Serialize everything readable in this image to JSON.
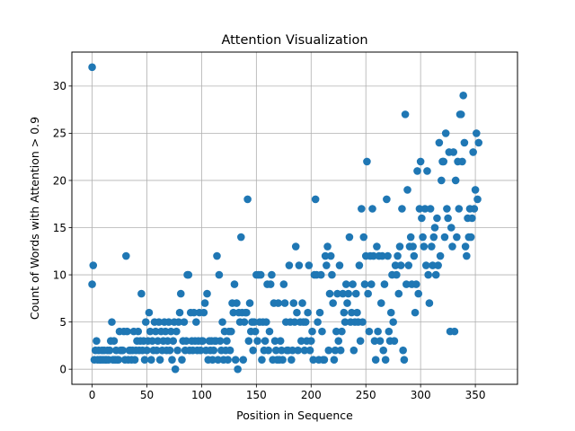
{
  "chart_data": {
    "type": "scatter",
    "title": "Attention Visualization",
    "xlabel": "Position in Sequence",
    "ylabel": "Count of Words with Attention > 0.9",
    "xlim": [
      -18.5,
      388.5
    ],
    "ylim": [
      -1.6,
      33.6
    ],
    "xticks": [
      0,
      50,
      100,
      150,
      200,
      250,
      300,
      350
    ],
    "yticks": [
      0,
      5,
      10,
      15,
      20,
      25,
      30
    ],
    "grid": true,
    "marker_color": "#1f77b4",
    "points": [
      [
        0,
        32
      ],
      [
        0,
        9
      ],
      [
        1,
        11
      ],
      [
        2,
        1
      ],
      [
        3,
        2
      ],
      [
        4,
        3
      ],
      [
        5,
        1
      ],
      [
        6,
        2
      ],
      [
        7,
        1
      ],
      [
        8,
        1
      ],
      [
        9,
        2
      ],
      [
        10,
        1
      ],
      [
        11,
        2
      ],
      [
        12,
        1
      ],
      [
        13,
        1
      ],
      [
        14,
        2
      ],
      [
        15,
        1
      ],
      [
        16,
        2
      ],
      [
        17,
        3
      ],
      [
        18,
        5
      ],
      [
        19,
        1
      ],
      [
        20,
        3
      ],
      [
        21,
        1
      ],
      [
        22,
        2
      ],
      [
        23,
        1
      ],
      [
        24,
        1
      ],
      [
        25,
        4
      ],
      [
        26,
        2
      ],
      [
        27,
        2
      ],
      [
        28,
        2
      ],
      [
        29,
        4
      ],
      [
        30,
        1
      ],
      [
        31,
        12
      ],
      [
        32,
        4
      ],
      [
        33,
        1
      ],
      [
        34,
        2
      ],
      [
        35,
        2
      ],
      [
        36,
        1
      ],
      [
        37,
        2
      ],
      [
        38,
        4
      ],
      [
        39,
        1
      ],
      [
        40,
        2
      ],
      [
        41,
        3
      ],
      [
        42,
        4
      ],
      [
        43,
        2
      ],
      [
        44,
        3
      ],
      [
        45,
        8
      ],
      [
        46,
        2
      ],
      [
        47,
        3
      ],
      [
        48,
        1
      ],
      [
        49,
        5
      ],
      [
        50,
        2
      ],
      [
        51,
        3
      ],
      [
        52,
        6
      ],
      [
        53,
        4
      ],
      [
        54,
        1
      ],
      [
        55,
        3
      ],
      [
        56,
        2
      ],
      [
        57,
        5
      ],
      [
        58,
        4
      ],
      [
        59,
        2
      ],
      [
        60,
        3
      ],
      [
        61,
        5
      ],
      [
        62,
        1
      ],
      [
        63,
        4
      ],
      [
        64,
        2
      ],
      [
        65,
        3
      ],
      [
        66,
        5
      ],
      [
        67,
        4
      ],
      [
        68,
        2
      ],
      [
        69,
        3
      ],
      [
        70,
        5
      ],
      [
        71,
        2
      ],
      [
        72,
        4
      ],
      [
        73,
        1
      ],
      [
        74,
        3
      ],
      [
        75,
        5
      ],
      [
        76,
        0
      ],
      [
        77,
        4
      ],
      [
        78,
        2
      ],
      [
        79,
        5
      ],
      [
        80,
        6
      ],
      [
        81,
        8
      ],
      [
        82,
        1
      ],
      [
        83,
        3
      ],
      [
        84,
        5
      ],
      [
        85,
        2
      ],
      [
        86,
        3
      ],
      [
        87,
        10
      ],
      [
        88,
        10
      ],
      [
        89,
        2
      ],
      [
        90,
        6
      ],
      [
        91,
        3
      ],
      [
        92,
        2
      ],
      [
        93,
        6
      ],
      [
        94,
        3
      ],
      [
        95,
        5
      ],
      [
        96,
        2
      ],
      [
        97,
        3
      ],
      [
        98,
        6
      ],
      [
        99,
        2
      ],
      [
        100,
        3
      ],
      [
        101,
        3
      ],
      [
        102,
        6
      ],
      [
        103,
        7
      ],
      [
        104,
        2
      ],
      [
        105,
        8
      ],
      [
        106,
        1
      ],
      [
        107,
        3
      ],
      [
        108,
        2
      ],
      [
        109,
        3
      ],
      [
        110,
        1
      ],
      [
        111,
        2
      ],
      [
        112,
        3
      ],
      [
        113,
        3
      ],
      [
        114,
        12
      ],
      [
        115,
        1
      ],
      [
        116,
        10
      ],
      [
        117,
        3
      ],
      [
        118,
        2
      ],
      [
        119,
        5
      ],
      [
        120,
        1
      ],
      [
        121,
        4
      ],
      [
        122,
        2
      ],
      [
        123,
        3
      ],
      [
        124,
        1
      ],
      [
        125,
        4
      ],
      [
        126,
        2
      ],
      [
        127,
        4
      ],
      [
        128,
        7
      ],
      [
        129,
        6
      ],
      [
        130,
        9
      ],
      [
        131,
        1
      ],
      [
        132,
        7
      ],
      [
        133,
        0
      ],
      [
        134,
        6
      ],
      [
        135,
        5
      ],
      [
        136,
        14
      ],
      [
        137,
        6
      ],
      [
        138,
        1
      ],
      [
        139,
        5
      ],
      [
        140,
        6
      ],
      [
        141,
        6
      ],
      [
        142,
        18
      ],
      [
        143,
        3
      ],
      [
        144,
        7
      ],
      [
        145,
        4
      ],
      [
        146,
        5
      ],
      [
        147,
        2
      ],
      [
        148,
        5
      ],
      [
        149,
        4
      ],
      [
        150,
        10
      ],
      [
        151,
        3
      ],
      [
        152,
        10
      ],
      [
        153,
        5
      ],
      [
        154,
        10
      ],
      [
        155,
        1
      ],
      [
        156,
        5
      ],
      [
        157,
        2
      ],
      [
        158,
        3
      ],
      [
        159,
        5
      ],
      [
        160,
        9
      ],
      [
        161,
        2
      ],
      [
        162,
        4
      ],
      [
        163,
        9
      ],
      [
        164,
        10
      ],
      [
        165,
        1
      ],
      [
        166,
        7
      ],
      [
        167,
        3
      ],
      [
        168,
        2
      ],
      [
        169,
        1
      ],
      [
        170,
        7
      ],
      [
        171,
        1
      ],
      [
        172,
        3
      ],
      [
        173,
        2
      ],
      [
        174,
        1
      ],
      [
        175,
        9
      ],
      [
        176,
        7
      ],
      [
        177,
        5
      ],
      [
        178,
        2
      ],
      [
        179,
        2
      ],
      [
        180,
        11
      ],
      [
        181,
        5
      ],
      [
        182,
        1
      ],
      [
        183,
        2
      ],
      [
        184,
        7
      ],
      [
        185,
        5
      ],
      [
        186,
        13
      ],
      [
        187,
        6
      ],
      [
        188,
        2
      ],
      [
        189,
        11
      ],
      [
        190,
        5
      ],
      [
        191,
        3
      ],
      [
        192,
        7
      ],
      [
        193,
        5
      ],
      [
        194,
        2
      ],
      [
        195,
        5
      ],
      [
        196,
        3
      ],
      [
        197,
        6
      ],
      [
        198,
        11
      ],
      [
        199,
        2
      ],
      [
        200,
        3
      ],
      [
        201,
        4
      ],
      [
        202,
        1
      ],
      [
        203,
        10
      ],
      [
        204,
        18
      ],
      [
        205,
        10
      ],
      [
        206,
        5
      ],
      [
        207,
        1
      ],
      [
        208,
        6
      ],
      [
        209,
        10
      ],
      [
        210,
        4
      ],
      [
        211,
        1
      ],
      [
        212,
        1
      ],
      [
        213,
        12
      ],
      [
        214,
        11
      ],
      [
        215,
        13
      ],
      [
        216,
        2
      ],
      [
        217,
        8
      ],
      [
        218,
        12
      ],
      [
        219,
        10
      ],
      [
        220,
        7
      ],
      [
        221,
        1
      ],
      [
        222,
        2
      ],
      [
        223,
        4
      ],
      [
        224,
        8
      ],
      [
        225,
        3
      ],
      [
        226,
        11
      ],
      [
        227,
        2
      ],
      [
        228,
        4
      ],
      [
        229,
        8
      ],
      [
        230,
        6
      ],
      [
        231,
        5
      ],
      [
        232,
        9
      ],
      [
        233,
        7
      ],
      [
        234,
        8
      ],
      [
        235,
        14
      ],
      [
        236,
        5
      ],
      [
        237,
        6
      ],
      [
        238,
        9
      ],
      [
        239,
        2
      ],
      [
        240,
        5
      ],
      [
        241,
        8
      ],
      [
        242,
        6
      ],
      [
        243,
        5
      ],
      [
        244,
        11
      ],
      [
        245,
        3
      ],
      [
        246,
        17
      ],
      [
        247,
        5
      ],
      [
        248,
        14
      ],
      [
        249,
        9
      ],
      [
        250,
        12
      ],
      [
        251,
        22
      ],
      [
        252,
        8
      ],
      [
        253,
        4
      ],
      [
        254,
        12
      ],
      [
        255,
        9
      ],
      [
        256,
        17
      ],
      [
        257,
        12
      ],
      [
        258,
        3
      ],
      [
        259,
        1
      ],
      [
        260,
        13
      ],
      [
        261,
        4
      ],
      [
        262,
        12
      ],
      [
        263,
        3
      ],
      [
        264,
        7
      ],
      [
        265,
        12
      ],
      [
        266,
        2
      ],
      [
        267,
        9
      ],
      [
        268,
        1
      ],
      [
        269,
        18
      ],
      [
        270,
        12
      ],
      [
        271,
        4
      ],
      [
        272,
        3
      ],
      [
        273,
        6
      ],
      [
        274,
        10
      ],
      [
        275,
        5
      ],
      [
        276,
        3
      ],
      [
        277,
        11
      ],
      [
        278,
        10
      ],
      [
        279,
        12
      ],
      [
        280,
        8
      ],
      [
        281,
        13
      ],
      [
        282,
        11
      ],
      [
        283,
        17
      ],
      [
        284,
        2
      ],
      [
        285,
        1
      ],
      [
        286,
        27
      ],
      [
        287,
        9
      ],
      [
        288,
        19
      ],
      [
        289,
        11
      ],
      [
        290,
        13
      ],
      [
        291,
        14
      ],
      [
        292,
        9
      ],
      [
        293,
        13
      ],
      [
        294,
        12
      ],
      [
        295,
        6
      ],
      [
        296,
        9
      ],
      [
        297,
        21
      ],
      [
        298,
        8
      ],
      [
        299,
        17
      ],
      [
        300,
        22
      ],
      [
        301,
        16
      ],
      [
        302,
        14
      ],
      [
        303,
        13
      ],
      [
        304,
        17
      ],
      [
        305,
        11
      ],
      [
        306,
        21
      ],
      [
        307,
        10
      ],
      [
        308,
        7
      ],
      [
        309,
        17
      ],
      [
        310,
        13
      ],
      [
        311,
        11
      ],
      [
        312,
        14
      ],
      [
        313,
        15
      ],
      [
        314,
        10
      ],
      [
        315,
        16
      ],
      [
        316,
        11
      ],
      [
        317,
        24
      ],
      [
        318,
        12
      ],
      [
        319,
        20
      ],
      [
        320,
        22
      ],
      [
        321,
        22
      ],
      [
        322,
        14
      ],
      [
        323,
        25
      ],
      [
        324,
        17
      ],
      [
        325,
        16
      ],
      [
        326,
        23
      ],
      [
        327,
        4
      ],
      [
        328,
        15
      ],
      [
        329,
        13
      ],
      [
        330,
        23
      ],
      [
        331,
        4
      ],
      [
        332,
        20
      ],
      [
        333,
        14
      ],
      [
        334,
        22
      ],
      [
        335,
        17
      ],
      [
        336,
        27
      ],
      [
        337,
        27
      ],
      [
        338,
        22
      ],
      [
        339,
        29
      ],
      [
        340,
        24
      ],
      [
        341,
        13
      ],
      [
        342,
        12
      ],
      [
        343,
        16
      ],
      [
        344,
        14
      ],
      [
        345,
        17
      ],
      [
        346,
        14
      ],
      [
        347,
        16
      ],
      [
        348,
        23
      ],
      [
        349,
        17
      ],
      [
        350,
        19
      ],
      [
        351,
        25
      ],
      [
        352,
        18
      ],
      [
        353,
        24
      ]
    ]
  }
}
